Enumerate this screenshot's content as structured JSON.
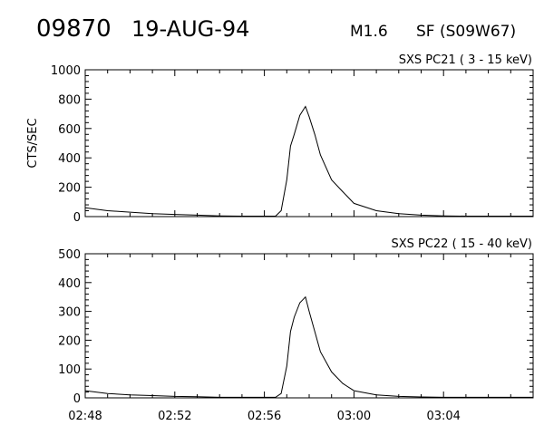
{
  "header": {
    "event_number": "09870",
    "date": "19-AUG-94",
    "goes_class": "M1.6",
    "flare_location": "SF (S09W67)"
  },
  "chart_data": [
    {
      "type": "line",
      "title": "SXS PC21  (  3 - 15 keV)",
      "ylabel": "CTS/SEC",
      "xlabel": "",
      "xlim": [
        "02:48",
        "03:08"
      ],
      "ylim": [
        0,
        1000
      ],
      "yticks": [
        0,
        200,
        400,
        600,
        800,
        1000
      ],
      "xticks": [
        "02:48",
        "02:52",
        "02:56",
        "03:00",
        "03:04"
      ],
      "series": [
        {
          "x": [
            "02:48",
            "02:49",
            "02:50",
            "02:51",
            "02:52",
            "02:53",
            "02:54",
            "02:55",
            "02:56",
            "02:56:30",
            "02:56:45",
            "02:57:00",
            "02:57:10",
            "02:57:20",
            "02:57:35",
            "02:57:50",
            "02:58:00",
            "02:58:15",
            "02:58:30",
            "02:59:00",
            "02:59:30",
            "03:00",
            "03:01",
            "03:02",
            "03:03",
            "03:04",
            "03:05",
            "03:06",
            "03:07",
            "03:08"
          ],
          "values": [
            60,
            40,
            30,
            20,
            15,
            10,
            5,
            3,
            3,
            3,
            40,
            250,
            480,
            560,
            690,
            750,
            680,
            560,
            420,
            250,
            170,
            90,
            40,
            20,
            10,
            5,
            3,
            3,
            3,
            3
          ]
        }
      ]
    },
    {
      "type": "line",
      "title": "SXS PC22  ( 15 - 40 keV)",
      "ylabel": "",
      "xlabel": "",
      "xlim": [
        "02:48",
        "03:08"
      ],
      "ylim": [
        0,
        500
      ],
      "yticks": [
        0,
        100,
        200,
        300,
        400,
        500
      ],
      "xticks": [
        "02:48",
        "02:52",
        "02:56",
        "03:00",
        "03:04"
      ],
      "series": [
        {
          "x": [
            "02:48",
            "02:49",
            "02:50",
            "02:51",
            "02:52",
            "02:53",
            "02:54",
            "02:55",
            "02:56",
            "02:56:30",
            "02:56:45",
            "02:57:00",
            "02:57:10",
            "02:57:20",
            "02:57:35",
            "02:57:50",
            "02:58:00",
            "02:58:15",
            "02:58:30",
            "02:59:00",
            "02:59:30",
            "03:00",
            "03:01",
            "03:02",
            "03:03",
            "03:04",
            "03:05",
            "03:06",
            "03:07",
            "03:08"
          ],
          "values": [
            25,
            15,
            10,
            8,
            5,
            4,
            2,
            2,
            2,
            2,
            15,
            110,
            230,
            280,
            330,
            350,
            300,
            230,
            160,
            90,
            50,
            25,
            10,
            5,
            3,
            2,
            2,
            2,
            2,
            2
          ]
        }
      ]
    }
  ]
}
